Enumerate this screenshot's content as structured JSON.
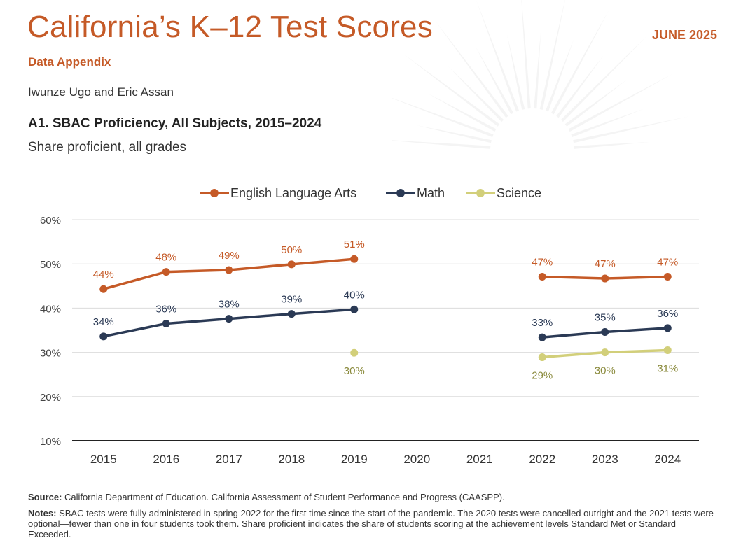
{
  "header": {
    "title": "California’s K–12 Test Scores",
    "date": "JUNE 2025",
    "subtitle": "Data Appendix",
    "authors": "Iwunze Ugo and Eric Assan"
  },
  "figure": {
    "title": "A1. SBAC Proficiency, All Subjects, 2015–2024",
    "subtitle": "Share proficient, all grades"
  },
  "colors": {
    "accent": "#c55a27",
    "ela": "#c55a27",
    "math": "#2b3a55",
    "science": "#d2cf7a",
    "science_label": "#8a8a3c"
  },
  "chart_data": {
    "type": "line",
    "categories": [
      "2015",
      "2016",
      "2017",
      "2018",
      "2019",
      "2020",
      "2021",
      "2022",
      "2023",
      "2024"
    ],
    "ylim": [
      10,
      60
    ],
    "yticks": [
      10,
      20,
      30,
      40,
      50,
      60
    ],
    "ytick_labels": [
      "10%",
      "20%",
      "30%",
      "40%",
      "50%",
      "60%"
    ],
    "grid": true,
    "legend_position": "top",
    "series": [
      {
        "name": "English Language Arts",
        "color": "#c55a27",
        "label_color": "#c55a27",
        "values": [
          44.3,
          48.2,
          48.6,
          49.9,
          51.1,
          null,
          null,
          47.1,
          46.7,
          47.1
        ],
        "labels": [
          "44%",
          "48%",
          "49%",
          "50%",
          "51%",
          null,
          null,
          "47%",
          "47%",
          "47%"
        ],
        "label_position": "above"
      },
      {
        "name": "Math",
        "color": "#2b3a55",
        "label_color": "#2b3a55",
        "values": [
          33.6,
          36.5,
          37.6,
          38.7,
          39.7,
          null,
          null,
          33.4,
          34.6,
          35.5
        ],
        "labels": [
          "34%",
          "36%",
          "38%",
          "39%",
          "40%",
          null,
          null,
          "33%",
          "35%",
          "36%"
        ],
        "label_position": "above"
      },
      {
        "name": "Science",
        "color": "#d2cf7a",
        "label_color": "#8a8a3c",
        "values": [
          null,
          null,
          null,
          null,
          29.9,
          null,
          null,
          28.9,
          30.0,
          30.5
        ],
        "labels": [
          null,
          null,
          null,
          null,
          "30%",
          null,
          null,
          "29%",
          "30%",
          "31%"
        ],
        "label_position": "below"
      }
    ]
  },
  "footer": {
    "source_label": "Source:",
    "source_text": "California Department of Education. California Assessment of Student Performance and Progress (CAASPP).",
    "notes_label": "Notes:",
    "notes_text": "SBAC tests were fully administered in spring 2022 for the first time since the start of the pandemic. The 2020 tests were cancelled outright and the 2021 tests were optional—fewer than one in four students took them. Share proficient indicates the share of students scoring at the achievement levels Standard Met or Standard Exceeded."
  }
}
